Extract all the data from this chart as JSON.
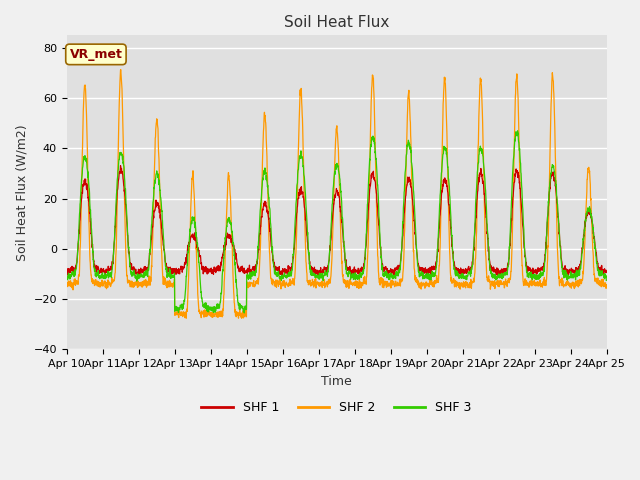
{
  "title": "Soil Heat Flux",
  "ylabel": "Soil Heat Flux (W/m2)",
  "xlabel": "Time",
  "ylim": [
    -40,
    85
  ],
  "yticks": [
    -40,
    -20,
    0,
    20,
    40,
    60,
    80
  ],
  "colors": {
    "SHF 1": "#cc0000",
    "SHF 2": "#ff9900",
    "SHF 3": "#33cc00"
  },
  "legend_labels": [
    "SHF 1",
    "SHF 2",
    "SHF 3"
  ],
  "annotation_text": "VR_met",
  "bg_color": "#e0e0e0",
  "fig_bg": "#f0f0f0",
  "n_days": 15,
  "start_day": 10,
  "points_per_day": 144,
  "shf2_peaks": [
    69,
    74,
    55,
    32,
    32,
    57,
    67,
    51,
    73,
    65,
    71,
    71,
    72,
    73,
    35
  ],
  "shf3_peaks": [
    39,
    41,
    32,
    14,
    14,
    33,
    40,
    36,
    47,
    45,
    43,
    43,
    49,
    35,
    18
  ],
  "shf1_peaks": [
    29,
    34,
    20,
    7,
    7,
    20,
    26,
    25,
    32,
    30,
    30,
    32,
    33,
    32,
    17
  ],
  "shf1_night": -9,
  "shf2_night": -14,
  "shf3_night": -11,
  "shf2_low_days": [
    3,
    4
  ],
  "shf2_very_low": -27,
  "shf3_low_days": [
    3,
    4
  ],
  "shf3_very_low": -24,
  "shf1_low_days": [],
  "shf1_very_low": -12,
  "grid_color": "#ffffff",
  "tick_label_size": 8,
  "linewidth": 0.9
}
